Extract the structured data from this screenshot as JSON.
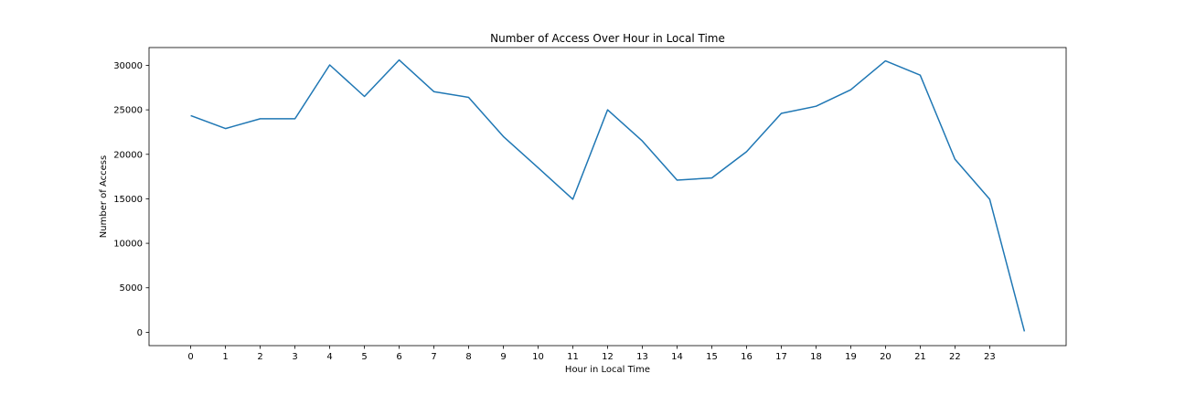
{
  "chart_data": {
    "type": "line",
    "title": "Number of Access Over Hour in Local Time",
    "xlabel": "Hour in Local Time",
    "ylabel": "Number of Access",
    "x_ticks": [
      "0",
      "1",
      "2",
      "3",
      "4",
      "5",
      "6",
      "7",
      "8",
      "9",
      "10",
      "11",
      "12",
      "13",
      "14",
      "15",
      "16",
      "17",
      "18",
      "19",
      "20",
      "21",
      "22",
      "23"
    ],
    "x": [
      0,
      1,
      2,
      3,
      4,
      5,
      6,
      7,
      8,
      9,
      10,
      11,
      12,
      13,
      14,
      15,
      16,
      17,
      18,
      19,
      20,
      21,
      22,
      23,
      24
    ],
    "series": [
      {
        "values": [
          24350,
          22900,
          24000,
          24000,
          30050,
          26500,
          30600,
          27050,
          26400,
          22000,
          18500,
          14950,
          25000,
          21500,
          17100,
          17350,
          20300,
          24600,
          25400,
          27250,
          30500,
          28900,
          19450,
          14950,
          100
        ],
        "color": "#1f77b4"
      }
    ],
    "xlim": [
      -1.2,
      25.2
    ],
    "ylim": [
      -1500,
      32000
    ],
    "y_ticks": [
      0,
      5000,
      10000,
      15000,
      20000,
      25000,
      30000
    ],
    "grid": false
  }
}
